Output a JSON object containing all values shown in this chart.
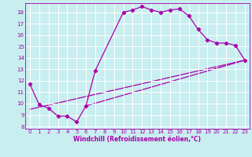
{
  "xlabel": "Windchill (Refroidissement éolien,°C)",
  "bg_color": "#c8eef0",
  "grid_color": "#ffffff",
  "line_color": "#aa00aa",
  "xlim": [
    -0.5,
    23.5
  ],
  "ylim": [
    7.8,
    18.8
  ],
  "xticks": [
    0,
    1,
    2,
    3,
    4,
    5,
    6,
    7,
    8,
    9,
    10,
    11,
    12,
    13,
    14,
    15,
    16,
    17,
    18,
    19,
    20,
    21,
    22,
    23
  ],
  "yticks": [
    8,
    9,
    10,
    11,
    12,
    13,
    14,
    15,
    16,
    17,
    18
  ],
  "line1_x": [
    0,
    1,
    2,
    3,
    4,
    5,
    6,
    7,
    10,
    11,
    12,
    13,
    14,
    15,
    16,
    17,
    18,
    19,
    20,
    21,
    22,
    23
  ],
  "line1_y": [
    11.7,
    9.9,
    9.6,
    8.9,
    8.9,
    8.4,
    9.8,
    12.9,
    18.0,
    18.2,
    18.5,
    18.2,
    18.0,
    18.2,
    18.3,
    17.7,
    16.5,
    15.6,
    15.3,
    15.3,
    15.1,
    13.8
  ],
  "line2_x": [
    0,
    23
  ],
  "line2_y": [
    9.5,
    13.8
  ],
  "line3_x": [
    6,
    23
  ],
  "line3_y": [
    9.8,
    13.8
  ],
  "marker": "D",
  "marker_size": 2.2,
  "linewidth": 0.9,
  "tick_fontsize": 5.0,
  "xlabel_fontsize": 5.5
}
